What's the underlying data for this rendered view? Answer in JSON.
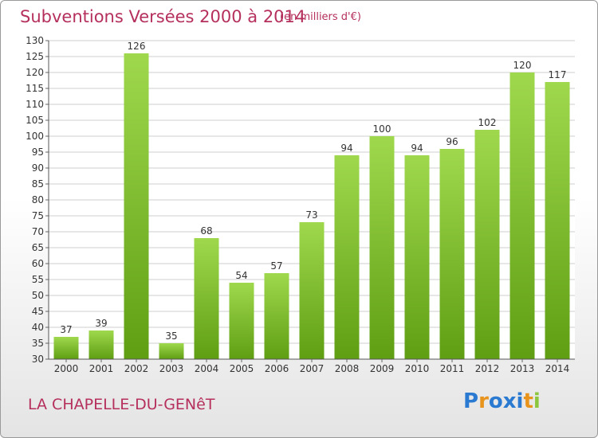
{
  "title": "Subventions Versées 2000 à 2014",
  "subtitle": "(en milliers d'€)",
  "commune": "LA CHAPELLE-DU-GENêT",
  "logo": {
    "text": "Proxiti",
    "letter_colors": [
      "#2a7ad1",
      "#e8931c",
      "#2a7ad1",
      "#2a7ad1",
      "#2a7ad1",
      "#e8931c",
      "#8cc63f"
    ]
  },
  "colors": {
    "title": "#b5305c",
    "bar_light": "#9fd84d",
    "bar_dark": "#5f9e13",
    "grid": "#cfcfcf",
    "text": "#333333"
  },
  "chart_data": {
    "type": "bar",
    "title": "Subventions Versées 2000 à 2014",
    "xlabel": "",
    "ylabel": "",
    "categories": [
      "2000",
      "2001",
      "2002",
      "2003",
      "2004",
      "2005",
      "2006",
      "2007",
      "2008",
      "2009",
      "2010",
      "2011",
      "2012",
      "2013",
      "2014"
    ],
    "values": [
      37,
      39,
      126,
      35,
      68,
      54,
      57,
      73,
      94,
      100,
      94,
      96,
      102,
      120,
      117
    ],
    "ylim": [
      30,
      130
    ],
    "yticks": [
      30,
      35,
      40,
      45,
      50,
      55,
      60,
      65,
      70,
      75,
      80,
      85,
      90,
      95,
      100,
      105,
      110,
      115,
      120,
      125,
      130
    ],
    "grid": true,
    "data_labels": true
  }
}
